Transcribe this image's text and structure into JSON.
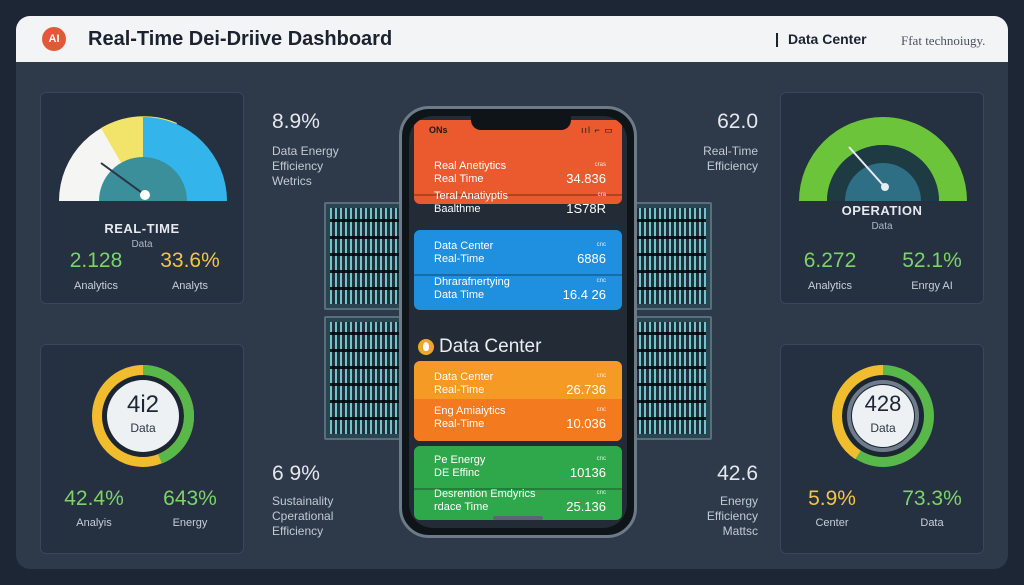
{
  "header": {
    "logo": "AI",
    "title": "Real-Time Dei-Driive Dashboard",
    "right_label": "Data Center",
    "right_sub": "Ffat technoiugy."
  },
  "cards": {
    "top_left": {
      "label": "REAL-TIME",
      "sub": "Data",
      "stat1": "2.128",
      "stat1_label": "Analytics",
      "stat2": "33.6%",
      "stat2_label": "Analyts",
      "gauge_fill": 0.7
    },
    "top_right": {
      "label": "OPERATION",
      "sub": "Data",
      "stat1": "6.272",
      "stat1_label": "Analytics",
      "stat2": "52.1%",
      "stat2_label": "Enrgy AI",
      "gauge_fill": 0.6
    },
    "bottom_left": {
      "ring_value": "4i2",
      "ring_label": "Data",
      "stat1": "42.4%",
      "stat1_label": "Analyis",
      "stat2": "643%",
      "stat2_label": "Energy",
      "ring_fill": 0.8
    },
    "bottom_right": {
      "ring_value": "428",
      "ring_label": "Data",
      "stat1": "5.9%",
      "stat1_label": "Center",
      "stat2": "73.3%",
      "stat2_label": "Data",
      "ring_fill": 0.75
    }
  },
  "middle": {
    "top_left": {
      "value": "8.9%",
      "lines": [
        "Data Energy",
        "Efficiency",
        "Wetrics"
      ]
    },
    "top_right": {
      "value": "62.0",
      "lines": [
        "Real-Time",
        "Efficiency"
      ]
    },
    "bottom_left": {
      "value": "6 9%",
      "lines": [
        "Sustainality",
        "Cperational",
        "Efficiency"
      ]
    },
    "bottom_right": {
      "value": "42.6",
      "lines": [
        "Energy",
        "Efficiency",
        "Mattsc"
      ]
    }
  },
  "phone": {
    "status_left": "ONs",
    "status_right": "ııl ⌐ ▭",
    "center_title": "Data Center",
    "rows": [
      {
        "l1": "Real Anetiytics",
        "l2": "Real Time",
        "sm": "cras",
        "value": "34.836",
        "color": "#ea5a2e"
      },
      {
        "l1": "Teral Anatiyptis",
        "l2": "Baalthme",
        "sm": "cra",
        "value": "1S78R",
        "color": "#ea5a2e"
      },
      {
        "l1": "Data Center",
        "l2": "Real-Time",
        "sm": "cnc",
        "value": "6886",
        "color": "#1f8fe0"
      },
      {
        "l1": "Dhrarafnertying",
        "l2": "Data Time",
        "sm": "cnc",
        "value": "16.4 26",
        "color": "#1f8fe0"
      },
      {
        "l1": "Data Center",
        "l2": "Real-Time",
        "sm": "cnc",
        "value": "26.736",
        "color": "#f59a25"
      },
      {
        "l1": "Eng Amiaiytics",
        "l2": "Real-Time",
        "sm": "cnc",
        "value": "10.036",
        "color": "#f47a1f"
      },
      {
        "l1": "Pe Energy",
        "l2": "DE Effinc",
        "sm": "cnc",
        "value": "10136",
        "color": "#2fa84c"
      },
      {
        "l1": "Desrention Emdyrics",
        "l2": "rdace Time",
        "sm": "cnc",
        "value": "25.136",
        "color": "#2fa84c"
      }
    ]
  },
  "colors": {
    "gauge_yellow": "#f2e36a",
    "gauge_teal": "#3aa6b8",
    "gauge_blue": "#33b4ea",
    "gauge_green": "#6cc43a",
    "ring_yellow": "#f1bd2e",
    "ring_green": "#58b84a",
    "stat_green": "#7dd36a",
    "stat_yellow": "#f4c545"
  }
}
